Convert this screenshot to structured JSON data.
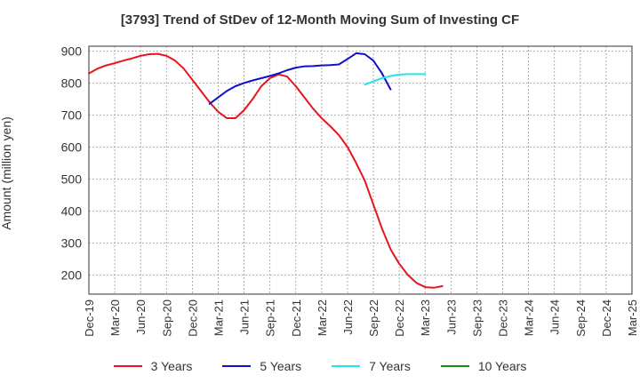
{
  "chart_data": {
    "type": "line",
    "title": "[3793]  Trend of StDev of 12-Month Moving Sum of Investing CF",
    "ylabel": "Amount (million yen)",
    "xlabel": "",
    "ylim": [
      140,
      915
    ],
    "yticks": [
      200,
      300,
      400,
      500,
      600,
      700,
      800,
      900
    ],
    "grid": true,
    "legend_position": "bottom",
    "x_ticks": [
      "Dec-19",
      "Mar-20",
      "Jun-20",
      "Sep-20",
      "Dec-20",
      "Mar-21",
      "Jun-21",
      "Sep-21",
      "Dec-21",
      "Mar-22",
      "Jun-22",
      "Sep-22",
      "Dec-22",
      "Mar-23",
      "Jun-23",
      "Sep-23",
      "Dec-23",
      "Mar-24",
      "Jun-24",
      "Sep-24",
      "Dec-24",
      "Mar-25"
    ],
    "series": [
      {
        "name": "3 Years",
        "color": "#e8141c",
        "start_index": 0,
        "values": [
          830,
          845,
          855,
          862,
          870,
          877,
          885,
          890,
          891,
          885,
          870,
          845,
          810,
          775,
          740,
          710,
          690,
          690,
          715,
          750,
          790,
          815,
          827,
          820,
          790,
          755,
          720,
          690,
          665,
          637,
          600,
          550,
          495,
          420,
          345,
          280,
          235,
          200,
          175,
          162,
          160,
          165
        ]
      },
      {
        "name": "5 Years",
        "color": "#1010cc",
        "start_index": 14,
        "values": [
          735,
          755,
          775,
          790,
          800,
          808,
          815,
          822,
          830,
          840,
          848,
          852,
          853,
          855,
          856,
          858,
          875,
          893,
          890,
          870,
          830,
          780
        ]
      },
      {
        "name": "7 Years",
        "color": "#22e6ee",
        "start_index": 32,
        "values": [
          795,
          805,
          815,
          822,
          826,
          828,
          828,
          828
        ]
      },
      {
        "name": "10 Years",
        "color": "#1a8a1a",
        "start_index": 0,
        "values": []
      }
    ]
  }
}
